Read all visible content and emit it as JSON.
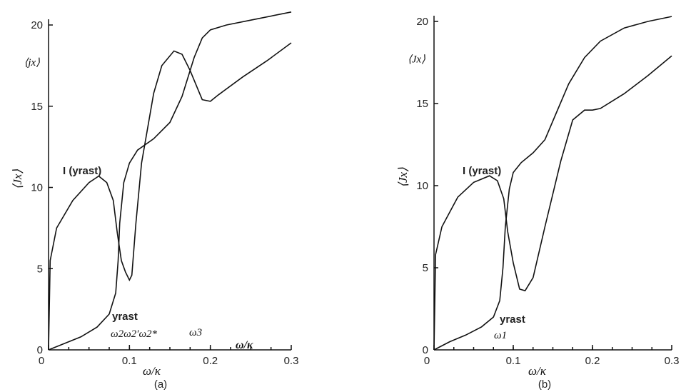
{
  "chart_data": [
    {
      "type": "line",
      "panel_label": "(a)",
      "xlabel": "ω/κ",
      "ylabel": "⟨Jx⟩",
      "ylabel_top": "⟨jx⟩",
      "xlim": [
        0,
        0.3
      ],
      "ylim": [
        0,
        20
      ],
      "x_ticks": [
        "0",
        "0.1",
        "0.2",
        "0.3"
      ],
      "x_tick_values": [
        0,
        0.1,
        0.2,
        0.3
      ],
      "y_ticks": [
        "5",
        "10",
        "15",
        "20"
      ],
      "y_tick_values": [
        5,
        10,
        15,
        20
      ],
      "extra_x_label": "ω/κ",
      "markers": [
        "ω2ω2′ω2*",
        "ω3"
      ],
      "series": [
        {
          "name": "I (yrast)",
          "points": [
            [
              0,
              0
            ],
            [
              0.002,
              5.5
            ],
            [
              0.01,
              7.5
            ],
            [
              0.03,
              9.2
            ],
            [
              0.05,
              10.3
            ],
            [
              0.062,
              10.7
            ],
            [
              0.072,
              10.3
            ],
            [
              0.08,
              9.2
            ],
            [
              0.085,
              7.2
            ],
            [
              0.09,
              5.5
            ],
            [
              0.095,
              4.8
            ],
            [
              0.1,
              4.3
            ],
            [
              0.103,
              4.6
            ],
            [
              0.108,
              7.8
            ],
            [
              0.115,
              11.5
            ],
            [
              0.13,
              15.8
            ],
            [
              0.14,
              17.5
            ],
            [
              0.155,
              18.4
            ],
            [
              0.165,
              18.2
            ],
            [
              0.175,
              17.2
            ],
            [
              0.19,
              15.4
            ],
            [
              0.2,
              15.3
            ],
            [
              0.21,
              15.7
            ],
            [
              0.24,
              16.8
            ],
            [
              0.27,
              17.8
            ],
            [
              0.3,
              18.9
            ]
          ]
        },
        {
          "name": "yrast",
          "points": [
            [
              0,
              0
            ],
            [
              0.02,
              0.4
            ],
            [
              0.04,
              0.8
            ],
            [
              0.06,
              1.4
            ],
            [
              0.075,
              2.2
            ],
            [
              0.083,
              3.5
            ],
            [
              0.086,
              5.5
            ],
            [
              0.088,
              7.8
            ],
            [
              0.093,
              10.3
            ],
            [
              0.1,
              11.5
            ],
            [
              0.11,
              12.3
            ],
            [
              0.13,
              13
            ],
            [
              0.15,
              14
            ],
            [
              0.165,
              15.6
            ],
            [
              0.18,
              18
            ],
            [
              0.19,
              19.2
            ],
            [
              0.2,
              19.7
            ],
            [
              0.22,
              20
            ],
            [
              0.25,
              20.3
            ],
            [
              0.3,
              20.8
            ]
          ]
        }
      ]
    },
    {
      "type": "line",
      "panel_label": "(b)",
      "xlabel": "ω/κ",
      "ylabel": "⟨Jx⟩",
      "ylabel_top": "⟨Jx⟩",
      "xlim": [
        0,
        0.3
      ],
      "ylim": [
        0,
        20
      ],
      "x_ticks": [
        "0",
        "0.1",
        "0.2",
        "0.3"
      ],
      "x_tick_values": [
        0,
        0.1,
        0.2,
        0.3
      ],
      "y_ticks": [
        "5",
        "10",
        "15",
        "20"
      ],
      "y_tick_values": [
        5,
        10,
        15,
        20
      ],
      "markers": [
        "ω1"
      ],
      "series": [
        {
          "name": "I (yrast)",
          "points": [
            [
              0,
              0
            ],
            [
              0.002,
              5.8
            ],
            [
              0.01,
              7.5
            ],
            [
              0.03,
              9.3
            ],
            [
              0.05,
              10.2
            ],
            [
              0.07,
              10.6
            ],
            [
              0.08,
              10.3
            ],
            [
              0.088,
              9.2
            ],
            [
              0.093,
              7.2
            ],
            [
              0.1,
              5.3
            ],
            [
              0.108,
              3.7
            ],
            [
              0.115,
              3.6
            ],
            [
              0.125,
              4.4
            ],
            [
              0.14,
              7.5
            ],
            [
              0.16,
              11.5
            ],
            [
              0.175,
              14
            ],
            [
              0.19,
              14.6
            ],
            [
              0.2,
              14.6
            ],
            [
              0.21,
              14.7
            ],
            [
              0.24,
              15.6
            ],
            [
              0.27,
              16.7
            ],
            [
              0.3,
              17.9
            ]
          ]
        },
        {
          "name": "yrast",
          "points": [
            [
              0,
              0
            ],
            [
              0.02,
              0.5
            ],
            [
              0.04,
              0.9
            ],
            [
              0.06,
              1.4
            ],
            [
              0.075,
              2
            ],
            [
              0.083,
              3
            ],
            [
              0.087,
              5
            ],
            [
              0.09,
              7.5
            ],
            [
              0.095,
              9.8
            ],
            [
              0.1,
              10.8
            ],
            [
              0.11,
              11.4
            ],
            [
              0.125,
              12
            ],
            [
              0.14,
              12.8
            ],
            [
              0.155,
              14.5
            ],
            [
              0.17,
              16.2
            ],
            [
              0.19,
              17.8
            ],
            [
              0.21,
              18.8
            ],
            [
              0.24,
              19.6
            ],
            [
              0.27,
              20
            ],
            [
              0.3,
              20.3
            ]
          ]
        }
      ]
    }
  ]
}
